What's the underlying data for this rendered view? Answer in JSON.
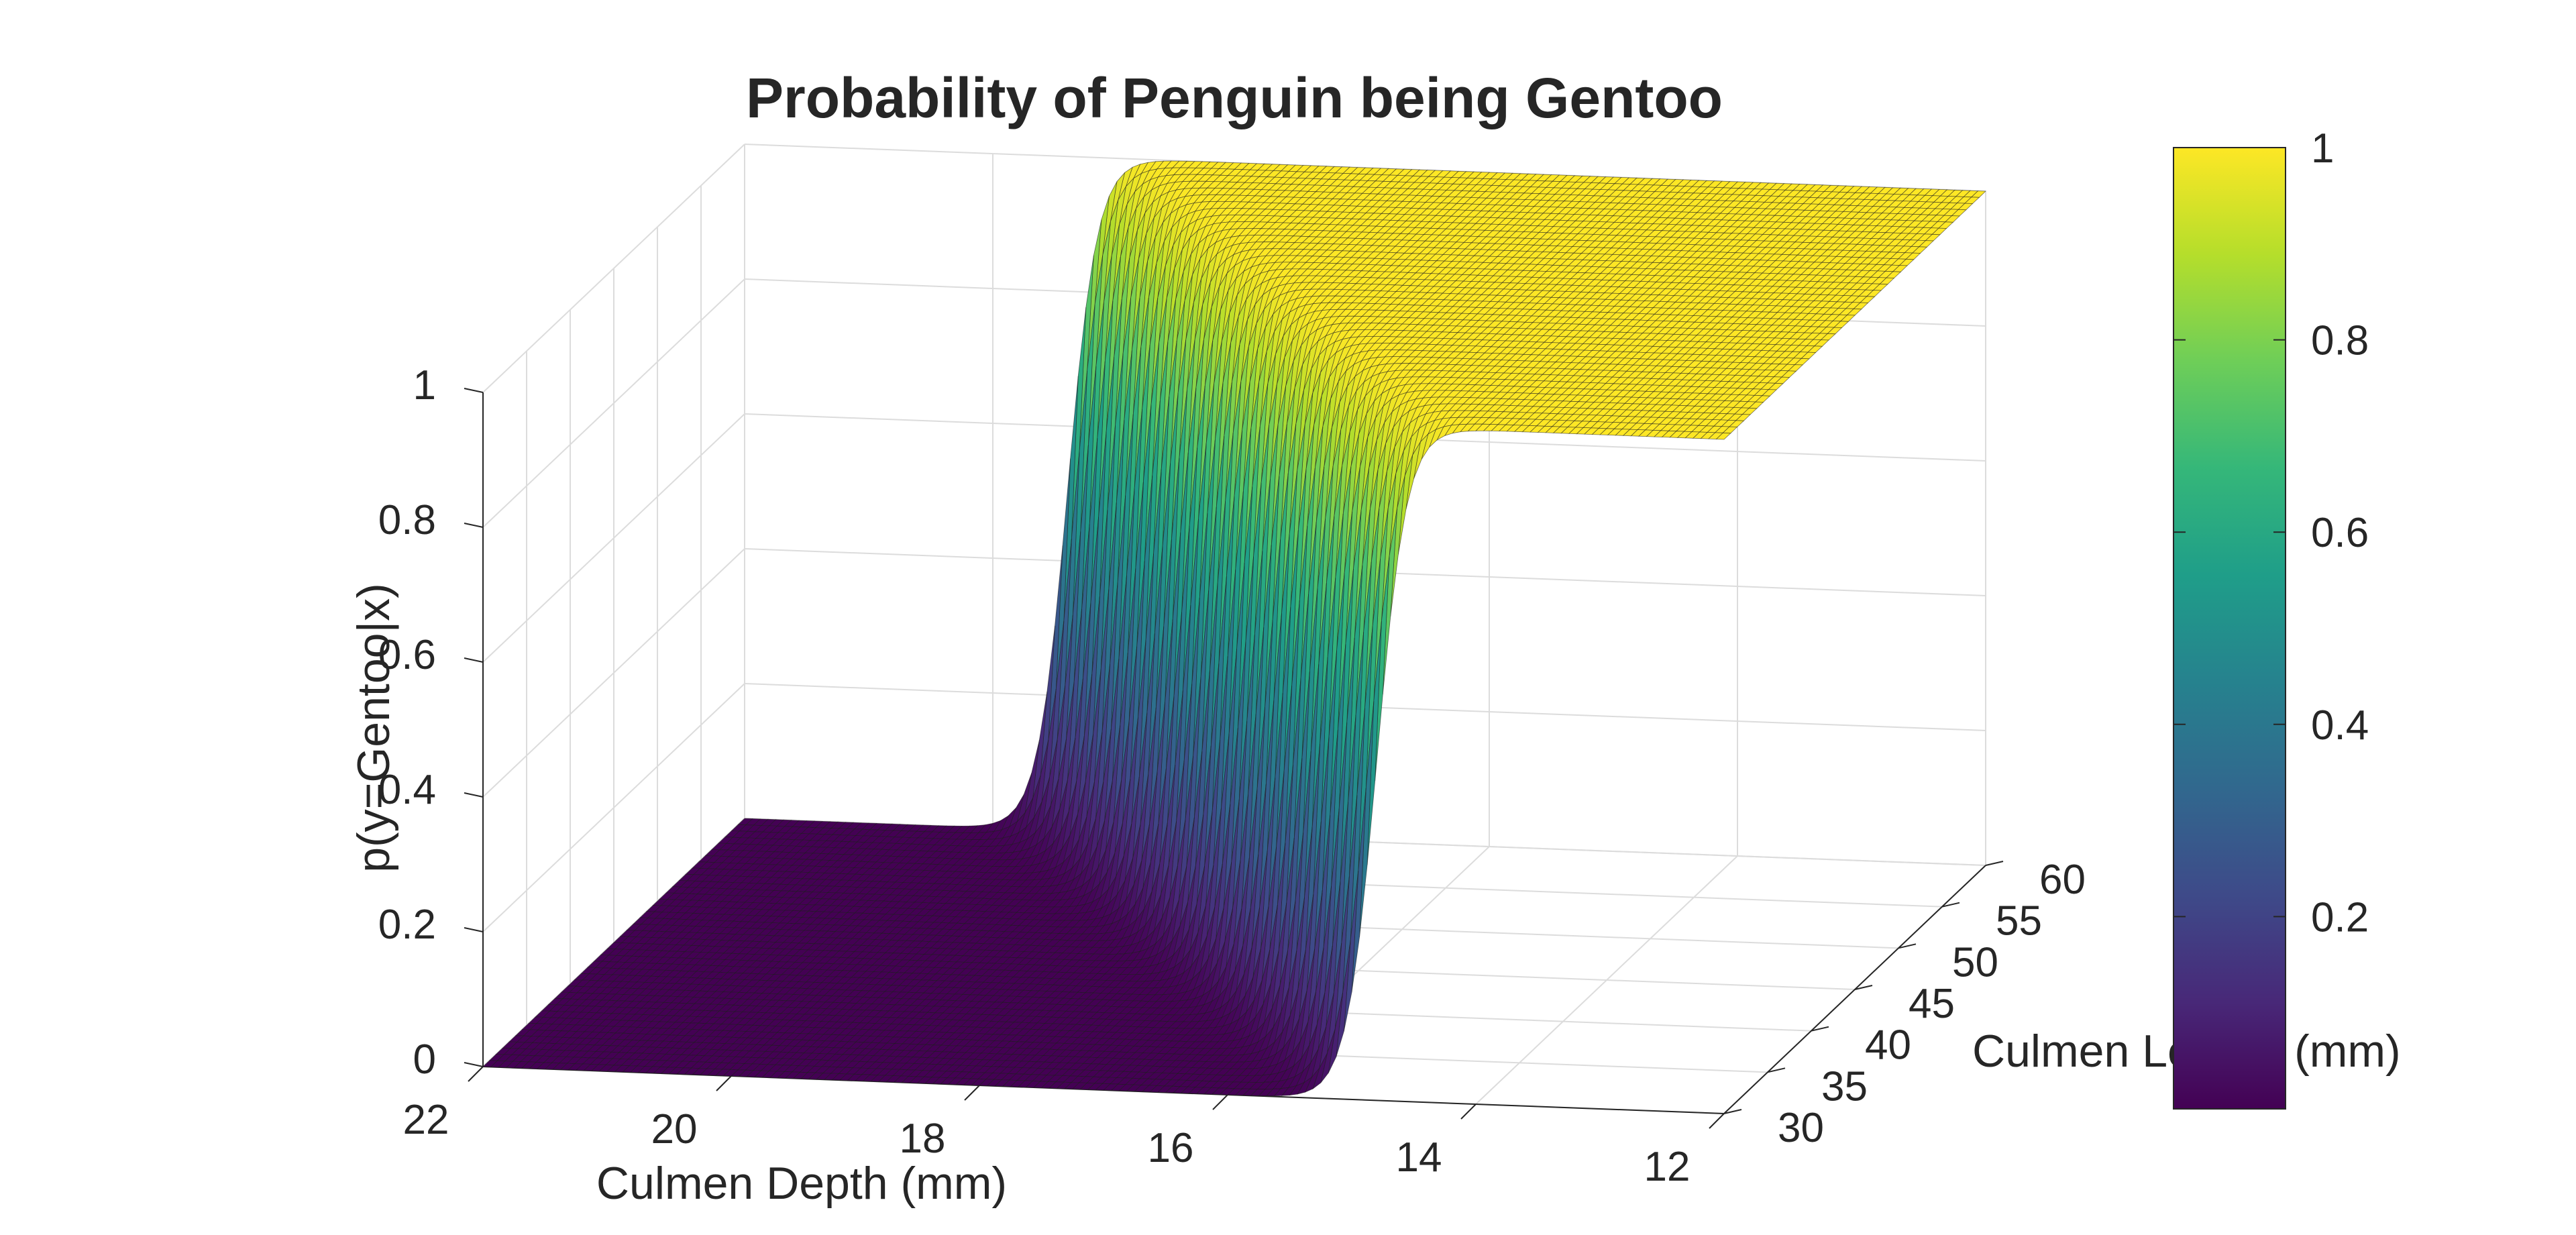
{
  "chart_data": {
    "type": "surface",
    "title": "Probability of Penguin being Gentoo",
    "xlabel": "Culmen Depth (mm)",
    "ylabel": "Culmen Length (mm)",
    "zlabel": "p(y=Gentoo|x)",
    "x_ticks": [
      "22",
      "20",
      "18",
      "16",
      "14",
      "12"
    ],
    "y_ticks": [
      "30",
      "35",
      "40",
      "45",
      "50",
      "55",
      "60"
    ],
    "z_ticks": [
      "0",
      "0.2",
      "0.4",
      "0.6",
      "0.8",
      "1"
    ],
    "xlim": [
      12,
      22
    ],
    "ylim": [
      30,
      60
    ],
    "zlim": [
      0,
      1
    ],
    "surface": {
      "function": "logistic",
      "description_values": {
        "depth_low_region_prob": 1,
        "depth_high_region_prob": 0
      },
      "transition_depth_at_length_30": 14.8,
      "transition_depth_at_length_60": 19.4
    },
    "colorbar": {
      "colormap": "viridis",
      "ticks": [
        "0.2",
        "0.4",
        "0.6",
        "0.8",
        "1"
      ],
      "range": [
        0.0,
        1.0
      ]
    },
    "grid": true,
    "colors": {
      "viridis": [
        "#440154",
        "#482878",
        "#3e4a89",
        "#31688e",
        "#26828e",
        "#1f9e89",
        "#35b779",
        "#6ece58",
        "#b5de2b",
        "#fde725"
      ]
    }
  }
}
